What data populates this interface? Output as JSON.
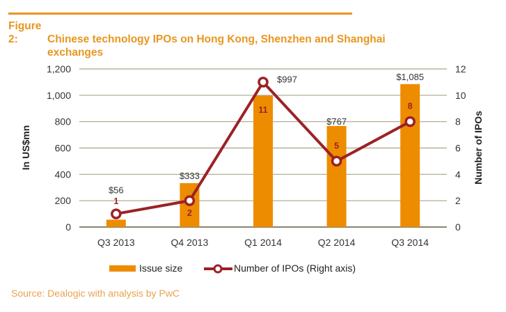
{
  "figure": {
    "title_prefix": "Figure 2:",
    "title_line1": "Chinese technology IPOs on Hong Kong, Shenzhen and Shanghai",
    "title_line2": "exchanges",
    "source": "Source: Dealogic with analysis by PwC"
  },
  "colors": {
    "accent": "#e8961e",
    "bar": "#ee8c00",
    "line": "#9b2226",
    "grid": "#aaa58a"
  },
  "chart_data": {
    "type": "bar",
    "title": "Chinese technology IPOs on Hong Kong, Shenzhen and Shanghai exchanges",
    "categories": [
      "Q3 2013",
      "Q4 2013",
      "Q1 2014",
      "Q2 2014",
      "Q3 2014"
    ],
    "series": [
      {
        "name": "Issue size",
        "type": "bar",
        "axis": "left",
        "values": [
          56,
          333,
          997,
          767,
          1085
        ],
        "labels": [
          "$56",
          "$333",
          "$997",
          "$767",
          "$1,085"
        ]
      },
      {
        "name": "Number of IPOs (Right axis)",
        "type": "line",
        "axis": "right",
        "values": [
          1,
          2,
          11,
          5,
          8
        ],
        "labels": [
          "1",
          "2",
          "11",
          "5",
          "8"
        ]
      }
    ],
    "ylabel": "In US$mn",
    "ylim": [
      0,
      1200
    ],
    "yticks": [
      "0",
      "200",
      "400",
      "600",
      "800",
      "1,000",
      "1,200"
    ],
    "y2label": "Number of IPOs",
    "y2lim": [
      0,
      12
    ],
    "y2ticks": [
      "0",
      "2",
      "4",
      "6",
      "8",
      "10",
      "12"
    ],
    "grid": true,
    "legend": "bottom"
  }
}
